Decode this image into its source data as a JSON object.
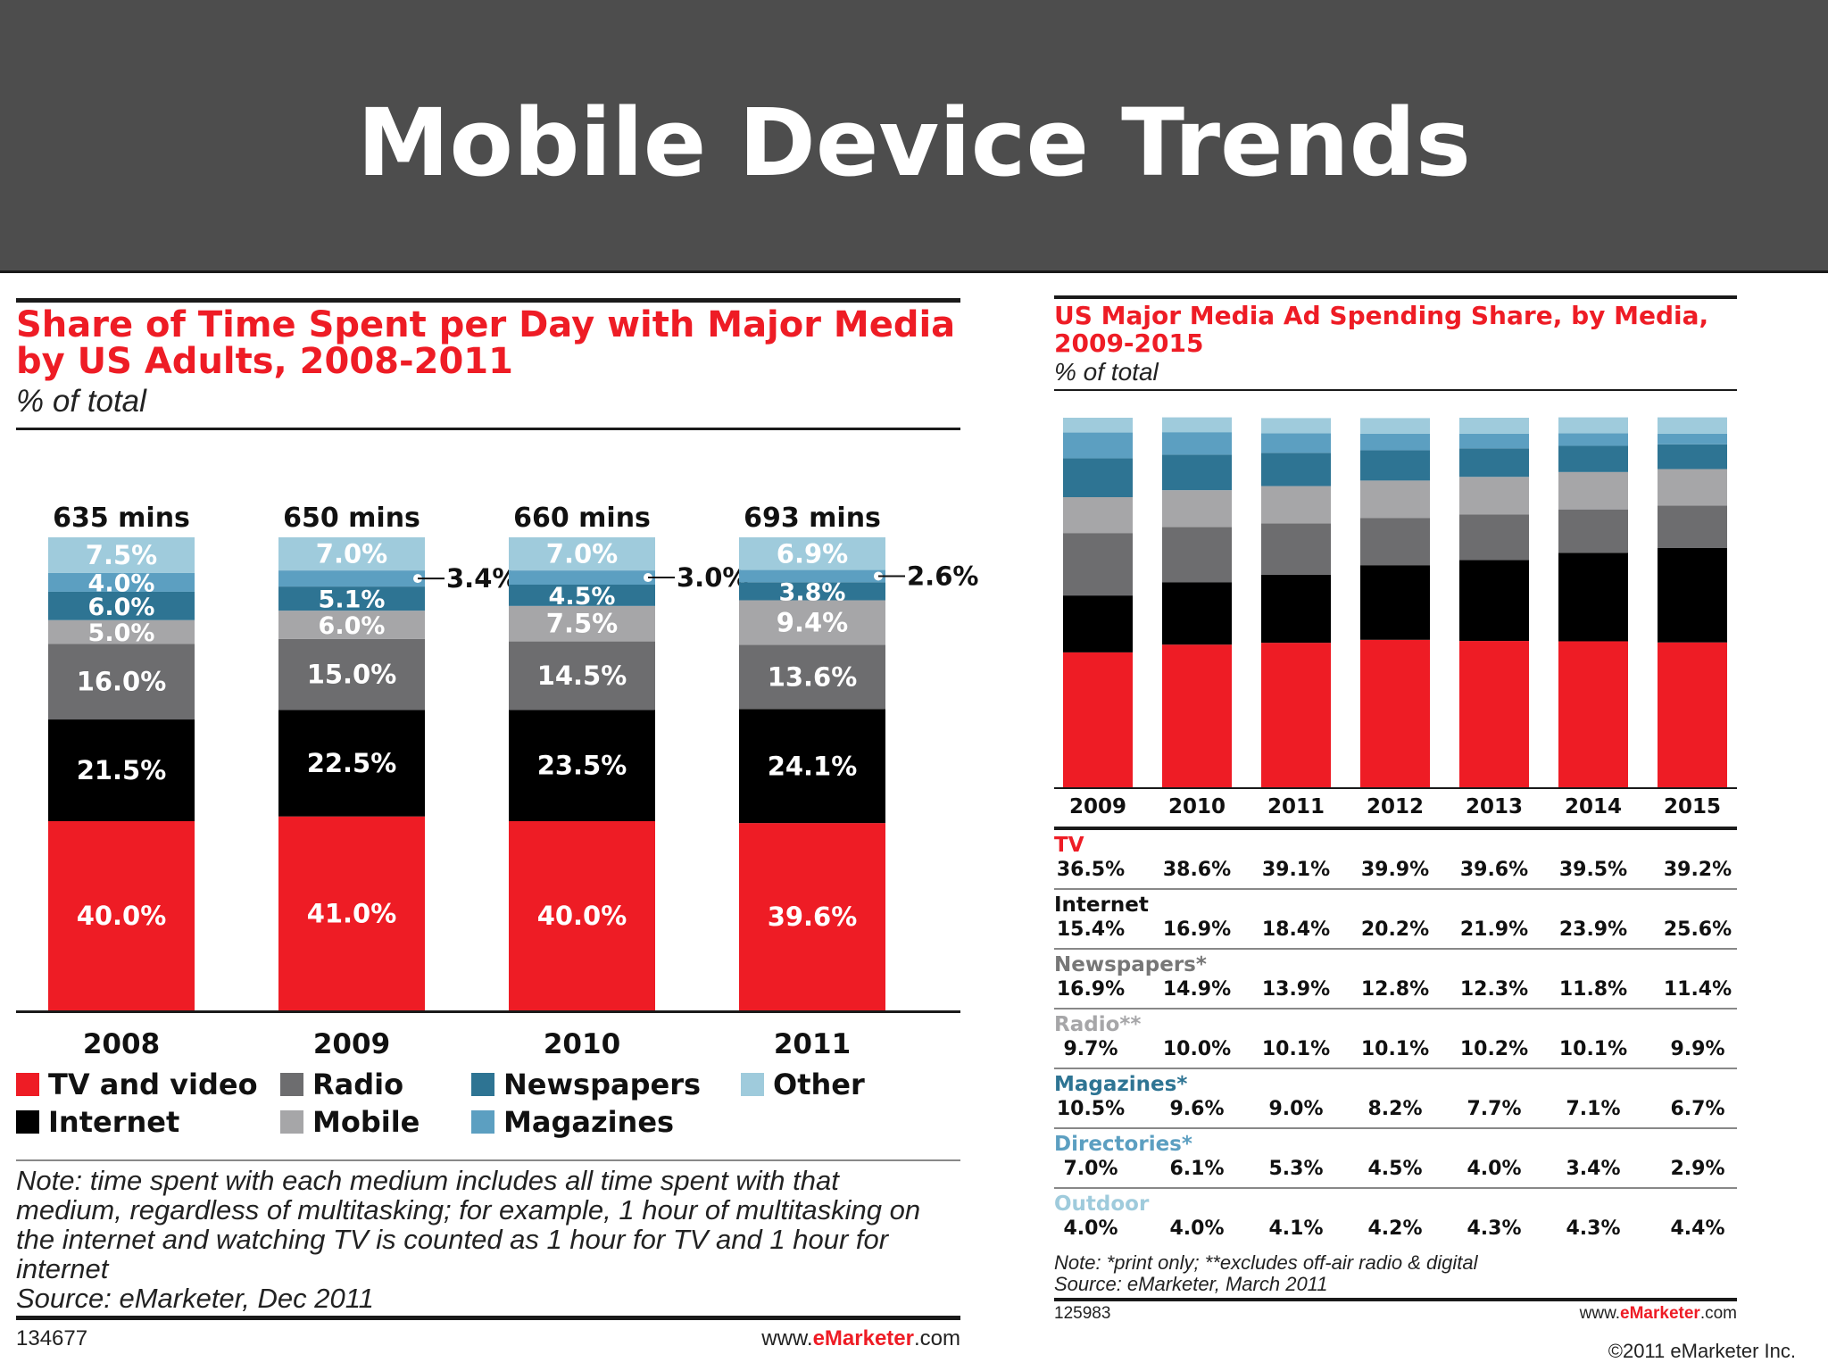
{
  "banner": {
    "title": "Mobile Device Trends"
  },
  "colors": {
    "tv": "#ee1c25",
    "internet": "#000000",
    "radio": "#6d6d6f",
    "mobile": "#a6a6a8",
    "newspapers": "#2e7493",
    "magazines": "#5c9fc1",
    "other": "#9fcbdc",
    "directories": "#86b8d2",
    "outdoor": "#bedeea",
    "banner_bg": "#4d4d4d"
  },
  "left_chart": {
    "title_line1": "Share of Time Spent per Day with Major Media",
    "title_line2": "by US Adults, 2008-2011",
    "subtitle": "% of total",
    "legend": [
      "TV and video",
      "Radio",
      "Newspapers",
      "Other",
      "Internet",
      "Mobile",
      "Magazines"
    ],
    "note": "Note: time spent with each medium includes all time spent with that medium, regardless of multitasking; for example, 1 hour of multitasking on the internet and watching TV is counted as 1 hour for TV and 1 hour for internet",
    "source": "Source: eMarketer, Dec 2011",
    "id": "134677",
    "footer_www": "www.",
    "footer_brand": "eMarketer",
    "footer_tld": ".com"
  },
  "right_chart": {
    "title_line1": "US Major Media Ad Spending Share, by Media,",
    "title_line2": "2009-2015",
    "subtitle": "% of total",
    "note": "Note: *print only; **excludes off-air radio & digital",
    "source": "Source: eMarketer, March 2011",
    "id": "125983",
    "footer_www": "www.",
    "footer_brand": "eMarketer",
    "footer_tld": ".com"
  },
  "copyright": "©2011 eMarketer Inc.",
  "chart_data": [
    {
      "type": "bar",
      "stacked": true,
      "title": "Share of Time Spent per Day with Major Media by US Adults, 2008-2011",
      "subtitle": "% of total",
      "categories": [
        "2008",
        "2009",
        "2010",
        "2011"
      ],
      "totals": [
        "635 mins",
        "650 mins",
        "660 mins",
        "693 mins"
      ],
      "series": [
        {
          "name": "TV and video",
          "values": [
            40.0,
            41.0,
            40.0,
            39.6
          ],
          "labels": [
            "40.0%",
            "41.0%",
            "40.0%",
            "39.6%"
          ]
        },
        {
          "name": "Internet",
          "values": [
            21.5,
            22.5,
            23.5,
            24.1
          ],
          "labels": [
            "21.5%",
            "22.5%",
            "23.5%",
            "24.1%"
          ]
        },
        {
          "name": "Radio",
          "values": [
            16.0,
            15.0,
            14.5,
            13.6
          ],
          "labels": [
            "16.0%",
            "15.0%",
            "14.5%",
            "13.6%"
          ]
        },
        {
          "name": "Mobile",
          "values": [
            5.0,
            6.0,
            7.5,
            9.4
          ],
          "labels": [
            "5.0%",
            "6.0%",
            "7.5%",
            "9.4%"
          ]
        },
        {
          "name": "Newspapers",
          "values": [
            6.0,
            5.1,
            4.5,
            3.8
          ],
          "labels": [
            "6.0%",
            "5.1%",
            "4.5%",
            "3.8%"
          ]
        },
        {
          "name": "Magazines",
          "values": [
            4.0,
            3.4,
            3.0,
            2.6
          ],
          "labels": [
            "4.0%",
            "3.4%",
            "3.0%",
            "2.6%"
          ]
        },
        {
          "name": "Other",
          "values": [
            7.5,
            7.0,
            7.0,
            6.9
          ],
          "labels": [
            "7.5%",
            "7.0%",
            "7.0%",
            "6.9%"
          ]
        }
      ],
      "ylim": [
        0,
        100
      ],
      "legend_position": "bottom"
    },
    {
      "type": "bar",
      "stacked": true,
      "title": "US Major Media Ad Spending Share, by Media, 2009-2015",
      "subtitle": "% of total",
      "categories": [
        "2009",
        "2010",
        "2011",
        "2012",
        "2013",
        "2014",
        "2015"
      ],
      "series": [
        {
          "name": "TV",
          "values": [
            36.5,
            38.6,
            39.1,
            39.9,
            39.6,
            39.5,
            39.2
          ],
          "labels": [
            "36.5%",
            "38.6%",
            "39.1%",
            "39.9%",
            "39.6%",
            "39.5%",
            "39.2%"
          ]
        },
        {
          "name": "Internet",
          "values": [
            15.4,
            16.9,
            18.4,
            20.2,
            21.9,
            23.9,
            25.6
          ],
          "labels": [
            "15.4%",
            "16.9%",
            "18.4%",
            "20.2%",
            "21.9%",
            "23.9%",
            "25.6%"
          ]
        },
        {
          "name": "Newspapers*",
          "values": [
            16.9,
            14.9,
            13.9,
            12.8,
            12.3,
            11.8,
            11.4
          ],
          "labels": [
            "16.9%",
            "14.9%",
            "13.9%",
            "12.8%",
            "12.3%",
            "11.8%",
            "11.4%"
          ]
        },
        {
          "name": "Radio**",
          "values": [
            9.7,
            10.0,
            10.1,
            10.1,
            10.2,
            10.1,
            9.9
          ],
          "labels": [
            "9.7%",
            "10.0%",
            "10.1%",
            "10.1%",
            "10.2%",
            "10.1%",
            "9.9%"
          ]
        },
        {
          "name": "Magazines*",
          "values": [
            10.5,
            9.6,
            9.0,
            8.2,
            7.7,
            7.1,
            6.7
          ],
          "labels": [
            "10.5%",
            "9.6%",
            "9.0%",
            "8.2%",
            "7.7%",
            "7.1%",
            "6.7%"
          ]
        },
        {
          "name": "Directories*",
          "values": [
            7.0,
            6.1,
            5.3,
            4.5,
            4.0,
            3.4,
            2.9
          ],
          "labels": [
            "7.0%",
            "6.1%",
            "5.3%",
            "4.5%",
            "4.0%",
            "3.4%",
            "2.9%"
          ]
        },
        {
          "name": "Outdoor",
          "values": [
            4.0,
            4.0,
            4.1,
            4.2,
            4.3,
            4.3,
            4.4
          ],
          "labels": [
            "4.0%",
            "4.0%",
            "4.1%",
            "4.2%",
            "4.3%",
            "4.3%",
            "4.4%"
          ]
        }
      ],
      "ylim": [
        0,
        100
      ],
      "legend_position": "table-below"
    }
  ]
}
